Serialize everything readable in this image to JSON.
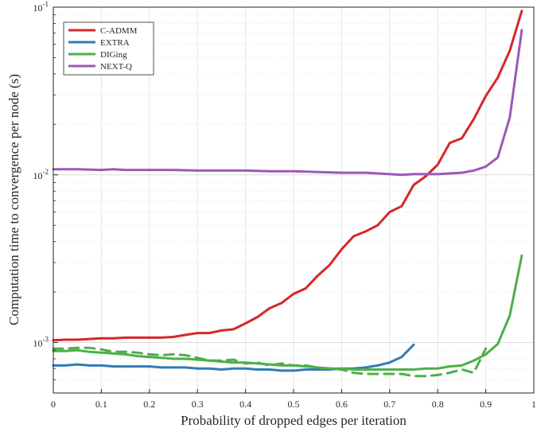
{
  "chart_data": {
    "type": "line",
    "xlabel": "Probability of dropped edges per iteration",
    "ylabel": "Computation time to convergence per node (s)",
    "xlim": [
      0,
      1
    ],
    "ylim": [
      0.0005,
      0.1
    ],
    "y_scale": "log",
    "grid": true,
    "legend_position": "top-left",
    "x_ticks": [
      0,
      0.1,
      0.2,
      0.3,
      0.4,
      0.5,
      0.6,
      0.7,
      0.8,
      0.9,
      1
    ],
    "x_tick_labels": [
      "0",
      "0.1",
      "0.2",
      "0.3",
      "0.4",
      "0.5",
      "0.6",
      "0.7",
      "0.8",
      "0.9",
      "1"
    ],
    "y_ticks": [
      0.001,
      0.01,
      0.1
    ],
    "y_tick_labels": [
      {
        "base": "10",
        "exp": "-3"
      },
      {
        "base": "10",
        "exp": "-2"
      },
      {
        "base": "10",
        "exp": "-1"
      }
    ],
    "legend": [
      "C-ADMM",
      "EXTRA",
      "DIGing",
      "NEXT-Q"
    ],
    "series": [
      {
        "name": "C-ADMM",
        "color": "#d62728",
        "dash": "solid",
        "x": [
          0,
          0.025,
          0.05,
          0.075,
          0.1,
          0.125,
          0.15,
          0.175,
          0.2,
          0.225,
          0.25,
          0.275,
          0.3,
          0.325,
          0.35,
          0.375,
          0.4,
          0.425,
          0.45,
          0.475,
          0.5,
          0.525,
          0.55,
          0.575,
          0.6,
          0.625,
          0.65,
          0.675,
          0.7,
          0.725,
          0.75,
          0.775,
          0.8,
          0.825,
          0.85,
          0.875,
          0.9,
          0.925,
          0.95,
          0.975
        ],
        "y": [
          0.00103,
          0.00104,
          0.00104,
          0.00105,
          0.00106,
          0.00106,
          0.00107,
          0.00107,
          0.00107,
          0.00107,
          0.00108,
          0.00111,
          0.00114,
          0.00114,
          0.00118,
          0.0012,
          0.0013,
          0.00142,
          0.0016,
          0.00172,
          0.00195,
          0.0021,
          0.0025,
          0.0029,
          0.0036,
          0.0043,
          0.0046,
          0.005,
          0.006,
          0.0065,
          0.0087,
          0.0098,
          0.0115,
          0.0155,
          0.0165,
          0.0215,
          0.0295,
          0.038,
          0.055,
          0.095
        ]
      },
      {
        "name": "EXTRA",
        "color": "#2f7bb6",
        "dash": "solid",
        "x": [
          0,
          0.025,
          0.05,
          0.075,
          0.1,
          0.125,
          0.15,
          0.175,
          0.2,
          0.225,
          0.25,
          0.275,
          0.3,
          0.325,
          0.35,
          0.375,
          0.4,
          0.425,
          0.45,
          0.475,
          0.5,
          0.525,
          0.55,
          0.575,
          0.6,
          0.625,
          0.65,
          0.675,
          0.7,
          0.725,
          0.75
        ],
        "y": [
          0.00073,
          0.00073,
          0.00074,
          0.00073,
          0.00073,
          0.00072,
          0.00072,
          0.00072,
          0.00072,
          0.00071,
          0.00071,
          0.00071,
          0.0007,
          0.0007,
          0.00069,
          0.0007,
          0.0007,
          0.00069,
          0.00069,
          0.00068,
          0.00068,
          0.00069,
          0.00069,
          0.00069,
          0.0007,
          0.0007,
          0.00071,
          0.00073,
          0.00076,
          0.00082,
          0.00097
        ]
      },
      {
        "name": "DIGing",
        "color": "#4daf4a",
        "dash": "solid",
        "x": [
          0,
          0.025,
          0.05,
          0.075,
          0.1,
          0.125,
          0.15,
          0.175,
          0.2,
          0.225,
          0.25,
          0.275,
          0.3,
          0.325,
          0.35,
          0.375,
          0.4,
          0.425,
          0.45,
          0.475,
          0.5,
          0.525,
          0.55,
          0.575,
          0.6,
          0.625,
          0.65,
          0.675,
          0.7,
          0.725,
          0.75,
          0.775,
          0.8,
          0.825,
          0.85,
          0.875,
          0.9,
          0.925,
          0.95,
          0.975
        ],
        "y": [
          0.00089,
          0.00089,
          0.0009,
          0.00088,
          0.00087,
          0.00086,
          0.00085,
          0.00083,
          0.00082,
          0.00081,
          0.0008,
          0.0008,
          0.00079,
          0.00078,
          0.00077,
          0.00076,
          0.00076,
          0.00075,
          0.00074,
          0.00073,
          0.00073,
          0.00072,
          0.00071,
          0.0007,
          0.0007,
          0.00069,
          0.00069,
          0.00069,
          0.00069,
          0.00069,
          0.00069,
          0.0007,
          0.0007,
          0.00072,
          0.00073,
          0.00078,
          0.00085,
          0.00098,
          0.00145,
          0.0033
        ]
      },
      {
        "name": "",
        "color": "#4daf4a",
        "dash": "dashed",
        "x": [
          0,
          0.025,
          0.05,
          0.075,
          0.1,
          0.125,
          0.15,
          0.175,
          0.2,
          0.225,
          0.25,
          0.275,
          0.3,
          0.325,
          0.35,
          0.375,
          0.4,
          0.425,
          0.45,
          0.475,
          0.5,
          0.525,
          0.55,
          0.575,
          0.6,
          0.625,
          0.65,
          0.675,
          0.7,
          0.725,
          0.75,
          0.775,
          0.8,
          0.825,
          0.85,
          0.875,
          0.9
        ],
        "y": [
          0.00092,
          0.00092,
          0.00093,
          0.00093,
          0.00091,
          0.00088,
          0.00088,
          0.00087,
          0.00085,
          0.00084,
          0.00085,
          0.00084,
          0.00081,
          0.00078,
          0.00078,
          0.00079,
          0.00075,
          0.00076,
          0.00073,
          0.00075,
          0.00073,
          0.00073,
          0.00071,
          0.0007,
          0.00069,
          0.00066,
          0.00065,
          0.00065,
          0.00065,
          0.00065,
          0.00063,
          0.00063,
          0.00064,
          0.00066,
          0.00069,
          0.00066,
          0.00092
        ]
      },
      {
        "name": "NEXT-Q",
        "color": "#9b59b6",
        "dash": "solid",
        "x": [
          0,
          0.05,
          0.1,
          0.125,
          0.15,
          0.2,
          0.25,
          0.3,
          0.35,
          0.4,
          0.45,
          0.5,
          0.55,
          0.6,
          0.65,
          0.7,
          0.725,
          0.75,
          0.775,
          0.8,
          0.825,
          0.85,
          0.875,
          0.9,
          0.925,
          0.95,
          0.975
        ],
        "y": [
          0.0108,
          0.0108,
          0.0107,
          0.0108,
          0.0107,
          0.0107,
          0.0107,
          0.0106,
          0.0106,
          0.0106,
          0.0105,
          0.0105,
          0.0104,
          0.0103,
          0.0103,
          0.0101,
          0.01,
          0.0101,
          0.0101,
          0.0101,
          0.0102,
          0.0103,
          0.0106,
          0.0112,
          0.0127,
          0.022,
          0.073
        ]
      }
    ]
  }
}
